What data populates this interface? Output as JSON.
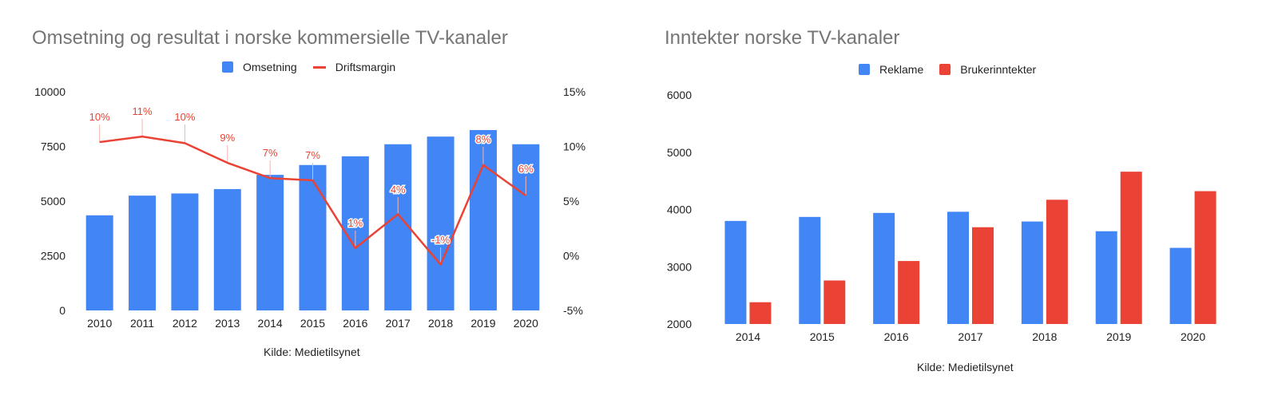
{
  "chart_data": [
    {
      "type": "bar",
      "title": "Omsetning og resultat i norske kommersielle TV-kanaler",
      "source": "Kilde: Medietilsynet",
      "categories": [
        "2010",
        "2011",
        "2012",
        "2013",
        "2014",
        "2015",
        "2016",
        "2017",
        "2018",
        "2019",
        "2020"
      ],
      "series": [
        {
          "name": "Omsetning",
          "type": "bar",
          "axis": "left",
          "color": "#4285f4",
          "values": [
            4350,
            5250,
            5350,
            5550,
            6200,
            6650,
            7050,
            7600,
            7950,
            8250,
            7600
          ]
        },
        {
          "name": "Driftsmargin",
          "type": "line",
          "axis": "right",
          "color": "#ea4335",
          "values": [
            10.4,
            10.9,
            10.3,
            8.5,
            7.1,
            6.9,
            0.7,
            3.8,
            -0.8,
            8.3,
            5.5
          ],
          "labels": [
            "10%",
            "11%",
            "10%",
            "9%",
            "7%",
            "7%",
            "1%",
            "4%",
            "-1%",
            "8%",
            "6%"
          ]
        }
      ],
      "y_left": {
        "ylim": [
          0,
          10000
        ],
        "ticks": [
          "0",
          "2500",
          "5000",
          "7500",
          "10000"
        ]
      },
      "y_right": {
        "ylim": [
          -5,
          15
        ],
        "ticks": [
          "-5%",
          "0%",
          "5%",
          "10%",
          "15%"
        ]
      },
      "grid": false,
      "legend": "top"
    },
    {
      "type": "bar",
      "title": "Inntekter norske TV-kanaler",
      "source": "Kilde: Medietilsynet",
      "categories": [
        "2014",
        "2015",
        "2016",
        "2017",
        "2018",
        "2019",
        "2020"
      ],
      "series": [
        {
          "name": "Reklame",
          "color": "#4285f4",
          "values": [
            3800,
            3870,
            3940,
            3960,
            3790,
            3620,
            3330
          ]
        },
        {
          "name": "Brukerinntekter",
          "color": "#ea4335",
          "values": [
            2380,
            2760,
            3100,
            3690,
            4170,
            4660,
            4320
          ]
        }
      ],
      "ylim": [
        2000,
        6000
      ],
      "ticks": [
        "2000",
        "3000",
        "4000",
        "5000",
        "6000"
      ],
      "grid": false,
      "legend": "top"
    }
  ]
}
